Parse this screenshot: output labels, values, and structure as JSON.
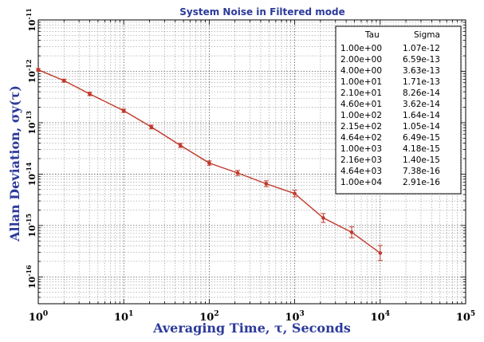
{
  "chart_data": {
    "type": "line",
    "title": "System Noise in Filtered mode",
    "xlabel": "Averaging Time, τ, Seconds",
    "ylabel": "Allan Deviation, σy(τ)",
    "xscale": "log",
    "yscale": "log",
    "xlim": [
      1,
      100000
    ],
    "ylim": [
      3e-17,
      1e-11
    ],
    "grid": true,
    "colors": {
      "line": "#c0392b",
      "text": "#2b3a9a",
      "grid": "#000000"
    },
    "x_ticks": [
      {
        "base": "10",
        "exp": "0"
      },
      {
        "base": "10",
        "exp": "1"
      },
      {
        "base": "10",
        "exp": "2"
      },
      {
        "base": "10",
        "exp": "3"
      },
      {
        "base": "10",
        "exp": "4"
      },
      {
        "base": "10",
        "exp": "5"
      }
    ],
    "y_ticks": [
      {
        "base": "10",
        "exp": "-11",
        "value": 1e-11
      },
      {
        "base": "10",
        "exp": "-12",
        "value": 1e-12
      },
      {
        "base": "10",
        "exp": "-13",
        "value": 1e-13
      },
      {
        "base": "10",
        "exp": "-14",
        "value": 1e-14
      },
      {
        "base": "10",
        "exp": "-15",
        "value": 1e-15
      },
      {
        "base": "10",
        "exp": "-16",
        "value": 1e-16
      }
    ],
    "series": [
      {
        "x": [
          1,
          2,
          4,
          10,
          21,
          46,
          100,
          215,
          464,
          1000,
          2160,
          4640,
          10000
        ],
        "y": [
          1.07e-12,
          6.59e-13,
          3.63e-13,
          1.71e-13,
          8.26e-14,
          3.62e-14,
          1.64e-14,
          1.05e-14,
          6.49e-15,
          4.18e-15,
          1.4e-15,
          7.38e-16,
          2.91e-16
        ],
        "err_factor": [
          1.06,
          1.07,
          1.08,
          1.08,
          1.09,
          1.1,
          1.1,
          1.12,
          1.14,
          1.16,
          1.22,
          1.28,
          1.4
        ]
      }
    ],
    "table": {
      "headers": [
        "Tau",
        "Sigma"
      ],
      "rows": [
        [
          "1.00e+00",
          "1.07e-12"
        ],
        [
          "2.00e+00",
          "6.59e-13"
        ],
        [
          "4.00e+00",
          "3.63e-13"
        ],
        [
          "1.00e+01",
          "1.71e-13"
        ],
        [
          "2.10e+01",
          "8.26e-14"
        ],
        [
          "4.60e+01",
          "3.62e-14"
        ],
        [
          "1.00e+02",
          "1.64e-14"
        ],
        [
          "2.15e+02",
          "1.05e-14"
        ],
        [
          "4.64e+02",
          "6.49e-15"
        ],
        [
          "1.00e+03",
          "4.18e-15"
        ],
        [
          "2.16e+03",
          "1.40e-15"
        ],
        [
          "4.64e+03",
          "7.38e-16"
        ],
        [
          "1.00e+04",
          "2.91e-16"
        ]
      ]
    }
  }
}
